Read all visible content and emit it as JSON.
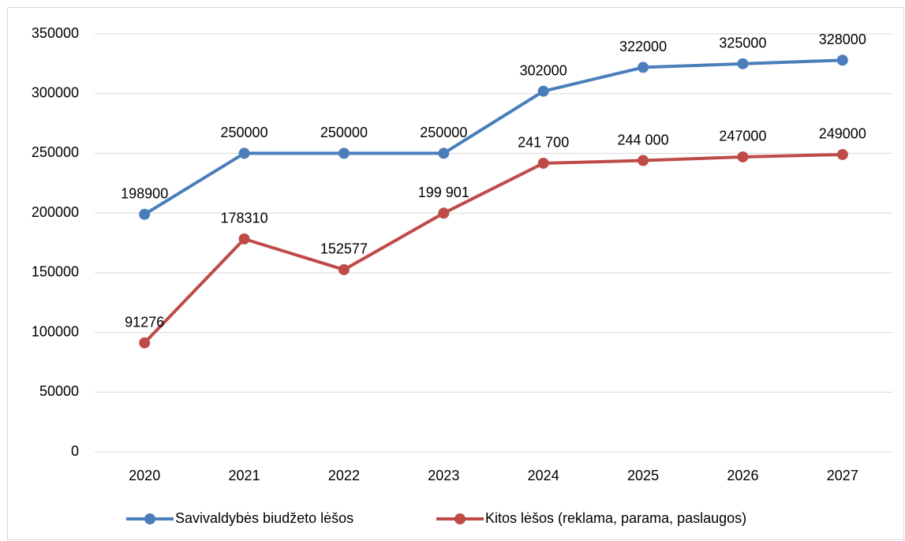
{
  "chart_data": {
    "type": "line",
    "categories": [
      "2020",
      "2021",
      "2022",
      "2023",
      "2024",
      "2025",
      "2026",
      "2027"
    ],
    "series": [
      {
        "name": "Savivaldybės biudžeto lėšos",
        "color": "#4a7ebb",
        "values": [
          198900,
          250000,
          250000,
          250000,
          302000,
          322000,
          325000,
          328000
        ],
        "value_labels": [
          "198900",
          "250000",
          "250000",
          "250000",
          "302000",
          "322000",
          "325000",
          "328000"
        ]
      },
      {
        "name": "Kitos lėšos (reklama, parama, paslaugos)",
        "color": "#be4b48",
        "values": [
          91276,
          178310,
          152577,
          199901,
          241700,
          244000,
          247000,
          249000
        ],
        "value_labels": [
          "91276",
          "178310",
          "152577",
          "199 901",
          "241 700",
          "244 000",
          "247000",
          "249000"
        ]
      }
    ],
    "ylim": [
      0,
      350000
    ],
    "yticks": [
      0,
      50000,
      100000,
      150000,
      200000,
      250000,
      300000,
      350000
    ],
    "grid": true,
    "legend": "bottom"
  }
}
